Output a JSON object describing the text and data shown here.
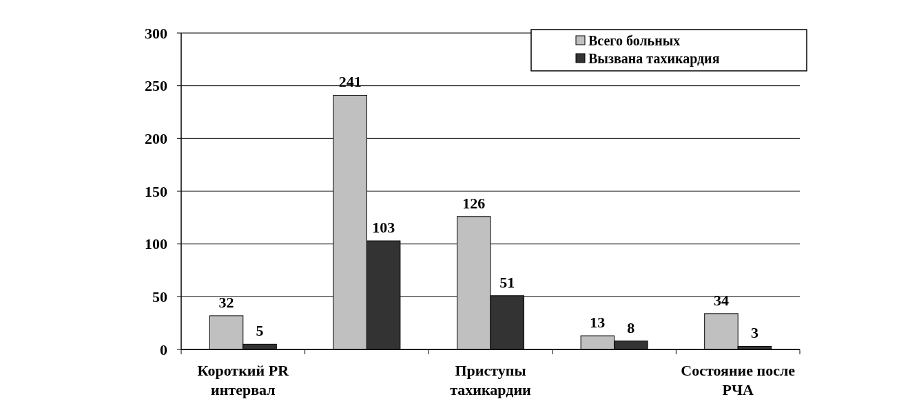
{
  "chart_data": {
    "type": "bar",
    "categories": [
      "Короткий PR интервал",
      null,
      "Приступы тахикардии",
      null,
      "Состояние после РЧА"
    ],
    "series": [
      {
        "name": "Всего больных",
        "color": "#c0c0c0",
        "values": [
          32,
          241,
          126,
          13,
          34
        ]
      },
      {
        "name": "Вызвана тахикардия",
        "color": "#333333",
        "values": [
          5,
          103,
          51,
          8,
          3
        ]
      }
    ],
    "ylim": [
      0,
      300
    ],
    "yticks": [
      0,
      50,
      100,
      150,
      200,
      250,
      300
    ],
    "grid": "y",
    "legend": "top right",
    "data_labels": true
  }
}
